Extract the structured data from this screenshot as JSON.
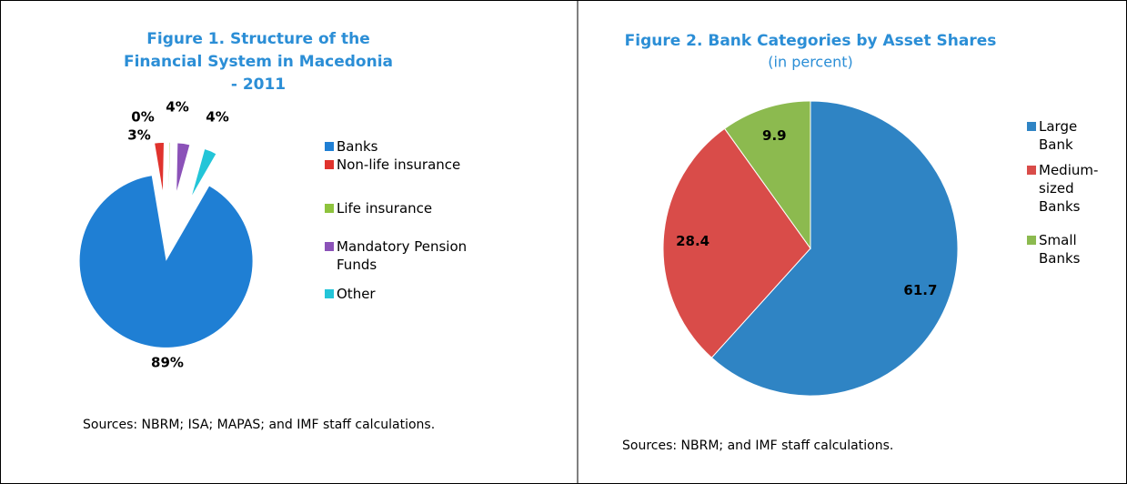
{
  "chart_data": [
    {
      "type": "pie",
      "title": "Figure 1. Structure of the Financial System in Macedonia - 2011",
      "categories": [
        "Banks",
        "Non-life insurance",
        "Life insurance",
        "Mandatory Pension Funds",
        "Other"
      ],
      "values": [
        89,
        3,
        0,
        4,
        4
      ],
      "value_labels": [
        "89%",
        "3%",
        "0%",
        "4%",
        "4%"
      ],
      "colors": [
        "#1f7fd4",
        "#e0332d",
        "#8ec33d",
        "#8b52b8",
        "#23c5d8"
      ],
      "exploded": true,
      "source": "Sources: NBRM; ISA; MAPAS; and IMF staff calculations."
    },
    {
      "type": "pie",
      "title": "Figure 2. Bank Categories by Asset Shares",
      "subtitle": "(in percent)",
      "categories": [
        "Large Bank",
        "Medium-sized Banks",
        "Small Banks"
      ],
      "values": [
        61.7,
        28.4,
        9.9
      ],
      "colors": [
        "#2f84c4",
        "#d94c49",
        "#8cba4f"
      ],
      "exploded": false,
      "source": "Sources: NBRM; and IMF staff calculations."
    }
  ]
}
